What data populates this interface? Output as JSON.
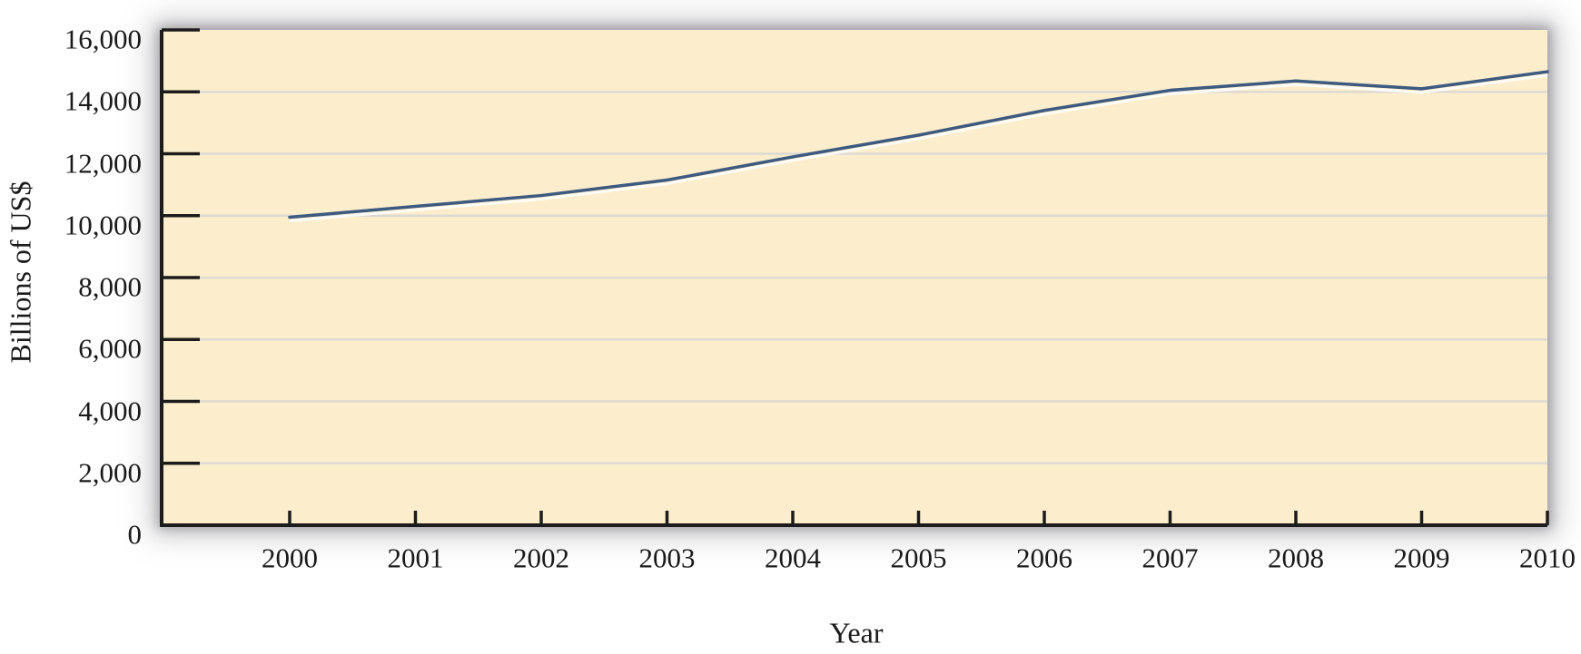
{
  "page": {
    "background": "#FFFFFF"
  },
  "chart_data": {
    "type": "line",
    "title": "",
    "xlabel": "Year",
    "ylabel": "Billions of US$",
    "x": [
      2000,
      2001,
      2002,
      2003,
      2004,
      2005,
      2006,
      2007,
      2008,
      2009,
      2010
    ],
    "x_tick_labels": [
      "2000",
      "2001",
      "2002",
      "2003",
      "2004",
      "2005",
      "2006",
      "2007",
      "2008",
      "2009",
      "2010"
    ],
    "values": [
      9950,
      10300,
      10650,
      11150,
      11900,
      12600,
      13400,
      14050,
      14350,
      14100,
      14650
    ],
    "ylim": [
      0,
      16000
    ],
    "y_ticks": [
      0,
      2000,
      4000,
      6000,
      8000,
      10000,
      12000,
      14000,
      16000
    ],
    "y_tick_labels": [
      "0",
      "2,000",
      "4,000",
      "6,000",
      "8,000",
      "10,000",
      "12,000",
      "14,000",
      "16,000"
    ],
    "grid": "horizontal",
    "legend": "none",
    "layout": {
      "x_axis_extends_one_year_before_first_point": true,
      "last_point_at_right_edge": true,
      "ticks_point_into_plot": true
    },
    "colors": {
      "line": "#3D5A80",
      "plot_background": "#FCEECD",
      "gridline": "#DCDAD3",
      "axis": "#1C1C1C",
      "text": "#1A1A1A",
      "shadow": "#8E8E93"
    }
  }
}
